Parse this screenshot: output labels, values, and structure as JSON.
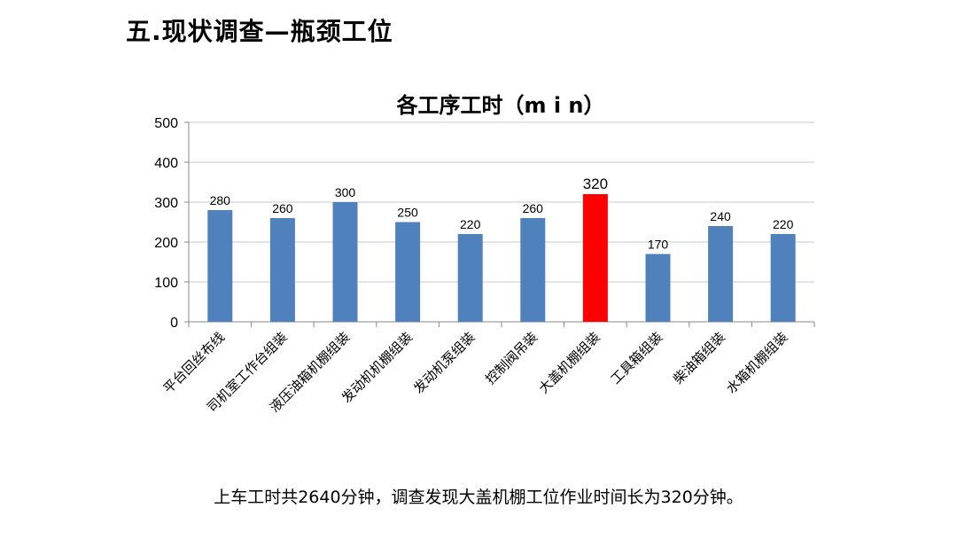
{
  "slide": {
    "title": "五.现状调查—瓶颈工位",
    "note": "上车工时共2640分钟，调查发现大盖机棚工位作业时间长为320分钟。"
  },
  "chart_data": {
    "type": "bar",
    "title": "各工序工时（m i n）",
    "categories": [
      "平台回丝布线",
      "司机室工作台组装",
      "液压油箱机棚组装",
      "发动机机棚组装",
      "发动机泵组装",
      "控制阀吊装",
      "大盖机棚组装",
      "工具箱组装",
      "柴油箱组装",
      "水箱机棚组装"
    ],
    "values": [
      280,
      260,
      300,
      250,
      220,
      260,
      320,
      170,
      240,
      220
    ],
    "highlight_index": 6,
    "ylim": [
      0,
      500
    ],
    "yticks": [
      0,
      100,
      200,
      300,
      400,
      500
    ],
    "grid": true,
    "legend": "none",
    "colors": {
      "bar": "#4F81BD",
      "highlight": "#FF0000",
      "grid": "#C8C8C8",
      "axis": "#888888"
    }
  }
}
